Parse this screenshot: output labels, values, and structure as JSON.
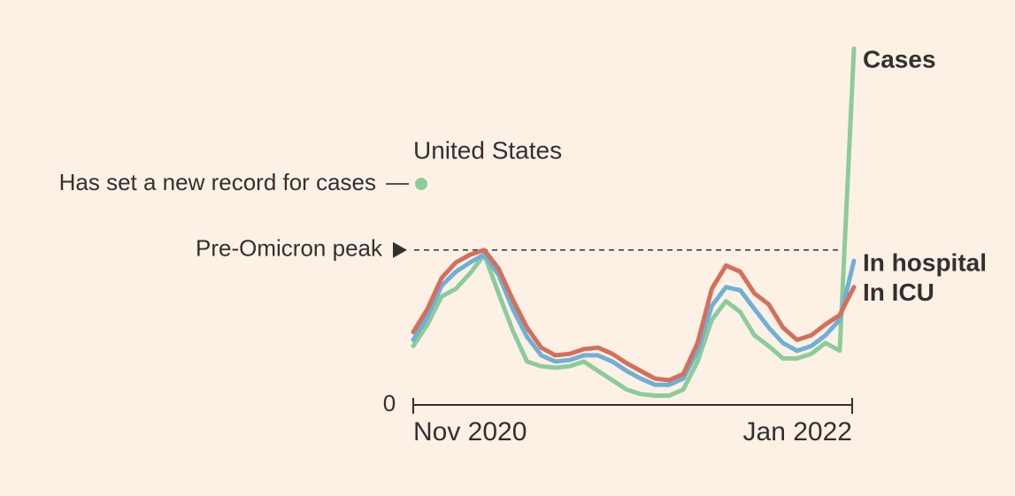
{
  "chart_data": {
    "type": "line",
    "title": "United States",
    "annotation": "Has set a new record for cases",
    "annotation_color": "#8ccc9a",
    "reference_line": {
      "label": "Pre-Omicron peak",
      "value": 100
    },
    "categories": [
      "Nov 2020",
      null,
      null,
      null,
      null,
      null,
      null,
      null,
      null,
      null,
      null,
      null,
      null,
      null,
      null,
      null,
      null,
      null,
      null,
      null,
      null,
      null,
      null,
      null,
      null,
      null,
      null,
      null,
      null,
      null,
      null,
      "Jan 2022"
    ],
    "series": [
      {
        "name": "Cases",
        "color": "#8ccc9a",
        "values": [
          38,
          52,
          70,
          75,
          85,
          97,
          72,
          48,
          28,
          25,
          24,
          25,
          28,
          22,
          16,
          10,
          7,
          6,
          6,
          10,
          28,
          55,
          67,
          60,
          45,
          38,
          30,
          30,
          33,
          40,
          35,
          230
        ]
      },
      {
        "name": "In hospital",
        "color": "#6fb0d8",
        "values": [
          42,
          57,
          77,
          86,
          92,
          97,
          84,
          62,
          44,
          32,
          28,
          29,
          32,
          32,
          28,
          22,
          17,
          13,
          13,
          17,
          35,
          64,
          76,
          74,
          62,
          50,
          40,
          35,
          38,
          45,
          55,
          93
        ]
      },
      {
        "name": "In ICU",
        "color": "#d4705a",
        "values": [
          47,
          62,
          82,
          92,
          97,
          100,
          88,
          68,
          50,
          37,
          32,
          33,
          36,
          37,
          33,
          27,
          22,
          17,
          16,
          20,
          40,
          75,
          90,
          86,
          72,
          65,
          50,
          42,
          45,
          52,
          58,
          76
        ]
      }
    ],
    "ylim": [
      0,
      230
    ],
    "yticks": [
      0
    ]
  }
}
